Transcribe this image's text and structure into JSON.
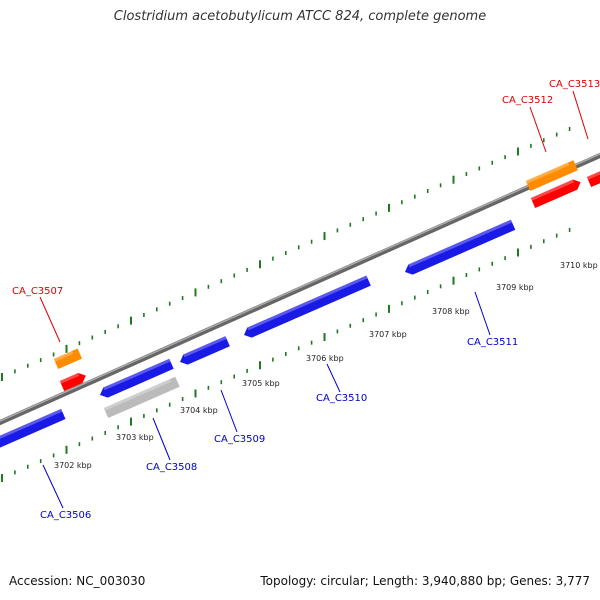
{
  "title": "Clostridium acetobutylicum ATCC 824, complete genome",
  "footer": {
    "accession": "Accession: NC_003030",
    "stats": "Topology: circular; Length: 3,940,880 bp; Genes: 3,777"
  },
  "colors": {
    "forward_gene": "#ff0000",
    "reverse_gene": "#1a1ae6",
    "rna_gene": "#ff8c00",
    "pseudo_gene": "#bbbbbb",
    "backbone": "#808080",
    "ticks": "#227722",
    "forward_label": "#dd0000",
    "reverse_label": "#0000cc"
  },
  "kbp_labels": [
    {
      "text": "3702 kbp"
    },
    {
      "text": "3703 kbp"
    },
    {
      "text": "3704 kbp"
    },
    {
      "text": "3705 kbp"
    },
    {
      "text": "3706 kbp"
    },
    {
      "text": "3707 kbp"
    },
    {
      "text": "3708 kbp"
    },
    {
      "text": "3709 kbp"
    },
    {
      "text": "3710 kbp"
    }
  ],
  "gene_labels": [
    {
      "text": "CA_C3507",
      "strand": "forward"
    },
    {
      "text": "CA_C3512",
      "strand": "forward"
    },
    {
      "text": "CA_C3513",
      "strand": "forward"
    },
    {
      "text": "CA_C3506",
      "strand": "reverse"
    },
    {
      "text": "CA_C3508",
      "strand": "reverse"
    },
    {
      "text": "CA_C3509",
      "strand": "reverse"
    },
    {
      "text": "CA_C3510",
      "strand": "reverse"
    },
    {
      "text": "CA_C3511",
      "strand": "reverse"
    }
  ]
}
